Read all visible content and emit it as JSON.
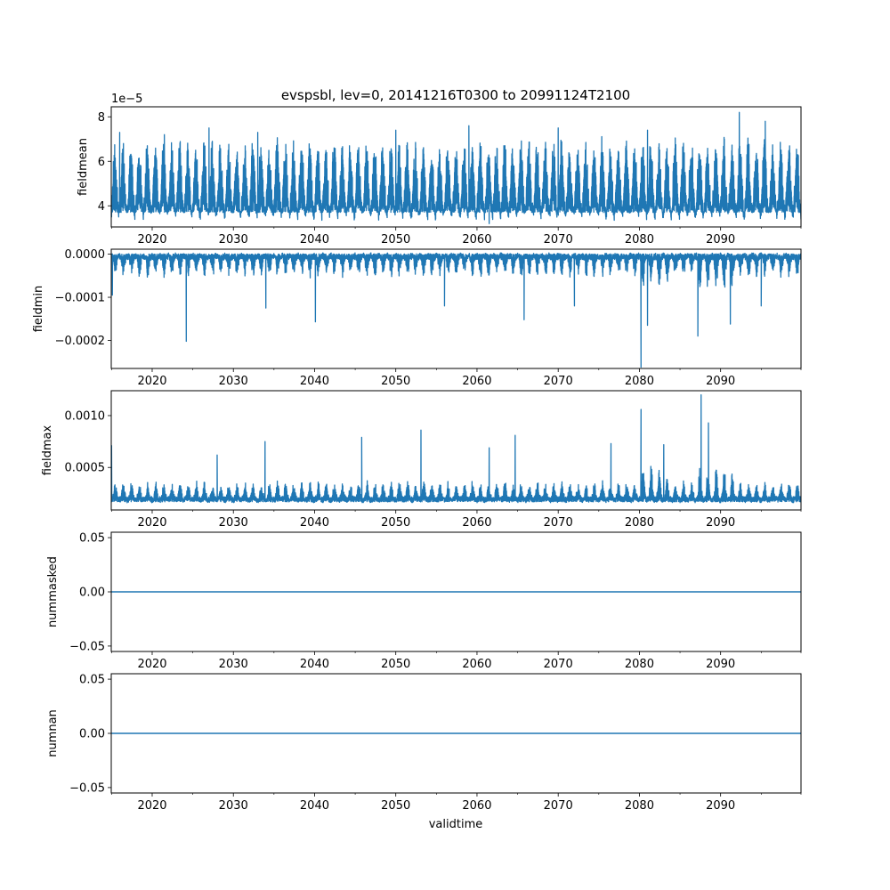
{
  "figure": {
    "title": "evspsbl, lev=0, 20141216T0300 to 20991124T2100",
    "xlabel": "validtime",
    "line_color": "#1f77b4"
  },
  "chart_data": [
    {
      "type": "line",
      "ylabel": "fieldmean",
      "offset_text": "1e−5",
      "xlim": [
        2014.96,
        2099.9
      ],
      "ylim": [
        3.05,
        8.45
      ],
      "x_ticks": [
        2020,
        2030,
        2040,
        2050,
        2060,
        2070,
        2080,
        2090
      ],
      "x_tick_labels": [
        "2020",
        "2030",
        "2040",
        "2050",
        "2060",
        "2070",
        "2080",
        "2090"
      ],
      "y_ticks": [
        4,
        6,
        8
      ],
      "y_tick_labels": [
        "4",
        "6",
        "8"
      ],
      "series": [
        {
          "style": "annual-cycle",
          "baseline": 3.7,
          "peak": 6.9,
          "noise": 0.35,
          "notable_points": [
            {
              "x": 2015.0,
              "y": 3.5
            },
            {
              "x": 2016.0,
              "y": 7.3
            },
            {
              "x": 2021.5,
              "y": 7.2
            },
            {
              "x": 2027.0,
              "y": 7.5
            },
            {
              "x": 2033.0,
              "y": 7.3
            },
            {
              "x": 2050.0,
              "y": 7.4
            },
            {
              "x": 2059.0,
              "y": 7.6
            },
            {
              "x": 2061.5,
              "y": 3.2
            },
            {
              "x": 2070.0,
              "y": 7.5
            },
            {
              "x": 2081.0,
              "y": 7.4
            },
            {
              "x": 2092.3,
              "y": 8.2
            },
            {
              "x": 2095.5,
              "y": 7.8
            },
            {
              "x": 2099.9,
              "y": 3.6
            }
          ]
        }
      ]
    },
    {
      "type": "line",
      "ylabel": "fieldmin",
      "offset_text": "",
      "xlim": [
        2014.96,
        2099.9
      ],
      "ylim": [
        -0.000265,
        1.15e-05
      ],
      "x_ticks": [
        2020,
        2030,
        2040,
        2050,
        2060,
        2070,
        2080,
        2090
      ],
      "x_tick_labels": [
        "2020",
        "2030",
        "2040",
        "2050",
        "2060",
        "2070",
        "2080",
        "2090"
      ],
      "y_ticks": [
        0.0,
        -0.0001,
        -0.0002
      ],
      "y_tick_labels": [
        "0.0000",
        "−0.0001",
        "−0.0002"
      ],
      "series": [
        {
          "style": "spiky-down",
          "baseline": -5e-06,
          "peak": -5e-05,
          "noise": 8e-06,
          "notable_points": [
            {
              "x": 2015.1,
              "y": -9.5e-05
            },
            {
              "x": 2024.2,
              "y": -0.000202
            },
            {
              "x": 2034.0,
              "y": -0.000125
            },
            {
              "x": 2040.1,
              "y": -0.000157
            },
            {
              "x": 2056.0,
              "y": -0.00012
            },
            {
              "x": 2065.8,
              "y": -0.000152
            },
            {
              "x": 2072.0,
              "y": -0.00012
            },
            {
              "x": 2080.2,
              "y": -0.000262
            },
            {
              "x": 2081.0,
              "y": -0.000165
            },
            {
              "x": 2087.2,
              "y": -0.00019
            },
            {
              "x": 2091.2,
              "y": -0.000162
            },
            {
              "x": 2095.0,
              "y": -0.00012
            }
          ]
        }
      ]
    },
    {
      "type": "line",
      "ylabel": "fieldmax",
      "offset_text": "",
      "xlim": [
        2014.96,
        2099.9
      ],
      "ylim": [
        9e-05,
        0.00124
      ],
      "x_ticks": [
        2020,
        2030,
        2040,
        2050,
        2060,
        2070,
        2080,
        2090
      ],
      "x_tick_labels": [
        "2020",
        "2030",
        "2040",
        "2050",
        "2060",
        "2070",
        "2080",
        "2090"
      ],
      "y_ticks": [
        0.0005,
        0.001
      ],
      "y_tick_labels": [
        "0.0005",
        "0.0010"
      ],
      "series": [
        {
          "style": "spiky-up",
          "baseline": 0.00019,
          "peak": 0.00035,
          "noise": 3e-05,
          "notable_points": [
            {
              "x": 2015.0,
              "y": 0.00071
            },
            {
              "x": 2028.0,
              "y": 0.00062
            },
            {
              "x": 2033.9,
              "y": 0.00075
            },
            {
              "x": 2045.8,
              "y": 0.00079
            },
            {
              "x": 2053.1,
              "y": 0.00086
            },
            {
              "x": 2061.5,
              "y": 0.00069
            },
            {
              "x": 2064.7,
              "y": 0.00081
            },
            {
              "x": 2076.5,
              "y": 0.00073
            },
            {
              "x": 2080.2,
              "y": 0.00106
            },
            {
              "x": 2083.0,
              "y": 0.00072
            },
            {
              "x": 2087.6,
              "y": 0.0012
            },
            {
              "x": 2088.5,
              "y": 0.00093
            }
          ]
        }
      ]
    },
    {
      "type": "line",
      "ylabel": "nummasked",
      "offset_text": "",
      "xlim": [
        2014.96,
        2099.9
      ],
      "ylim": [
        -0.055,
        0.055
      ],
      "x_ticks": [
        2020,
        2030,
        2040,
        2050,
        2060,
        2070,
        2080,
        2090
      ],
      "x_tick_labels": [
        "2020",
        "2030",
        "2040",
        "2050",
        "2060",
        "2070",
        "2080",
        "2090"
      ],
      "y_ticks": [
        0.05,
        0.0,
        -0.05
      ],
      "y_tick_labels": [
        "0.05",
        "0.00",
        "−0.05"
      ],
      "series": [
        {
          "style": "flat",
          "x": [
            2014.96,
            2099.9
          ],
          "y": [
            0,
            0
          ]
        }
      ]
    },
    {
      "type": "line",
      "ylabel": "numnan",
      "offset_text": "",
      "xlim": [
        2014.96,
        2099.9
      ],
      "ylim": [
        -0.055,
        0.055
      ],
      "x_ticks": [
        2020,
        2030,
        2040,
        2050,
        2060,
        2070,
        2080,
        2090
      ],
      "x_tick_labels": [
        "2020",
        "2030",
        "2040",
        "2050",
        "2060",
        "2070",
        "2080",
        "2090"
      ],
      "y_ticks": [
        0.05,
        0.0,
        -0.05
      ],
      "y_tick_labels": [
        "0.05",
        "0.00",
        "−0.05"
      ],
      "series": [
        {
          "style": "flat",
          "x": [
            2014.96,
            2099.9
          ],
          "y": [
            0,
            0
          ]
        }
      ]
    }
  ]
}
